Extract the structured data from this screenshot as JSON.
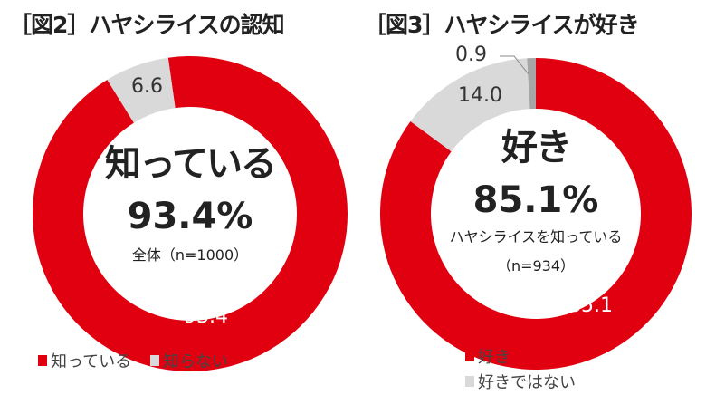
{
  "colors": {
    "red": "#e0000f",
    "light_gray": "#d9d9d9",
    "dark_gray": "#a6a6a6"
  },
  "chart_data": [
    {
      "type": "pie",
      "title": "［図2］ハヤシライスの認知",
      "center_label": "知っている",
      "center_value": "93.4%",
      "center_note": "全体（n=1000）",
      "series": [
        {
          "name": "知っている",
          "value": 93.4,
          "label": "93.4",
          "color": "#e0000f"
        },
        {
          "name": "知らない",
          "value": 6.6,
          "label": "6.6",
          "color": "#d9d9d9"
        }
      ],
      "legend": [
        "知っている",
        "知らない"
      ]
    },
    {
      "type": "pie",
      "title": "［図3］ハヤシライスが好き",
      "center_label": "好き",
      "center_value": "85.1%",
      "center_note": "ハヤシライスを知っている",
      "center_note2": "（n=934）",
      "series": [
        {
          "name": "好き",
          "value": 85.1,
          "label": "85.1",
          "color": "#e0000f"
        },
        {
          "name": "好きではない",
          "value": 14.0,
          "label": "14.0",
          "color": "#d9d9d9"
        },
        {
          "value": 0.9,
          "label": "0.9",
          "color": "#a6a6a6"
        }
      ],
      "legend": [
        "好き",
        "好きではない"
      ]
    }
  ]
}
